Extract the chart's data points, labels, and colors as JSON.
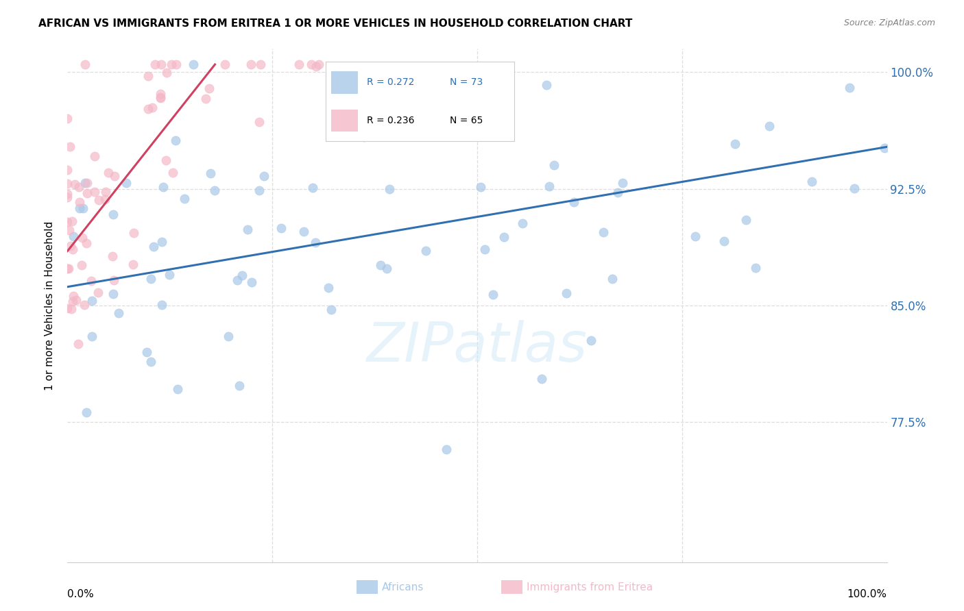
{
  "title": "AFRICAN VS IMMIGRANTS FROM ERITREA 1 OR MORE VEHICLES IN HOUSEHOLD CORRELATION CHART",
  "source": "Source: ZipAtlas.com",
  "ylabel": "1 or more Vehicles in Household",
  "xmin": 0.0,
  "xmax": 1.0,
  "ymin": 0.685,
  "ymax": 1.015,
  "yticks": [
    0.775,
    0.85,
    0.925,
    1.0
  ],
  "ytick_labels": [
    "77.5%",
    "85.0%",
    "92.5%",
    "100.0%"
  ],
  "africans_R": 0.272,
  "africans_N": 73,
  "eritrea_R": 0.236,
  "eritrea_N": 65,
  "blue_color": "#a8c8e8",
  "pink_color": "#f4b8c8",
  "blue_line_color": "#3070b0",
  "pink_line_color": "#d04060",
  "legend_blue_text_color": "#3070b0",
  "watermark_color": "#d0e8f8",
  "watermark": "ZIPatlas",
  "blue_line_x0": 0.0,
  "blue_line_y0": 0.862,
  "blue_line_x1": 1.0,
  "blue_line_y1": 0.952,
  "pink_line_x0": 0.0,
  "pink_line_y0": 0.885,
  "pink_line_x1": 0.18,
  "pink_line_y1": 1.005
}
